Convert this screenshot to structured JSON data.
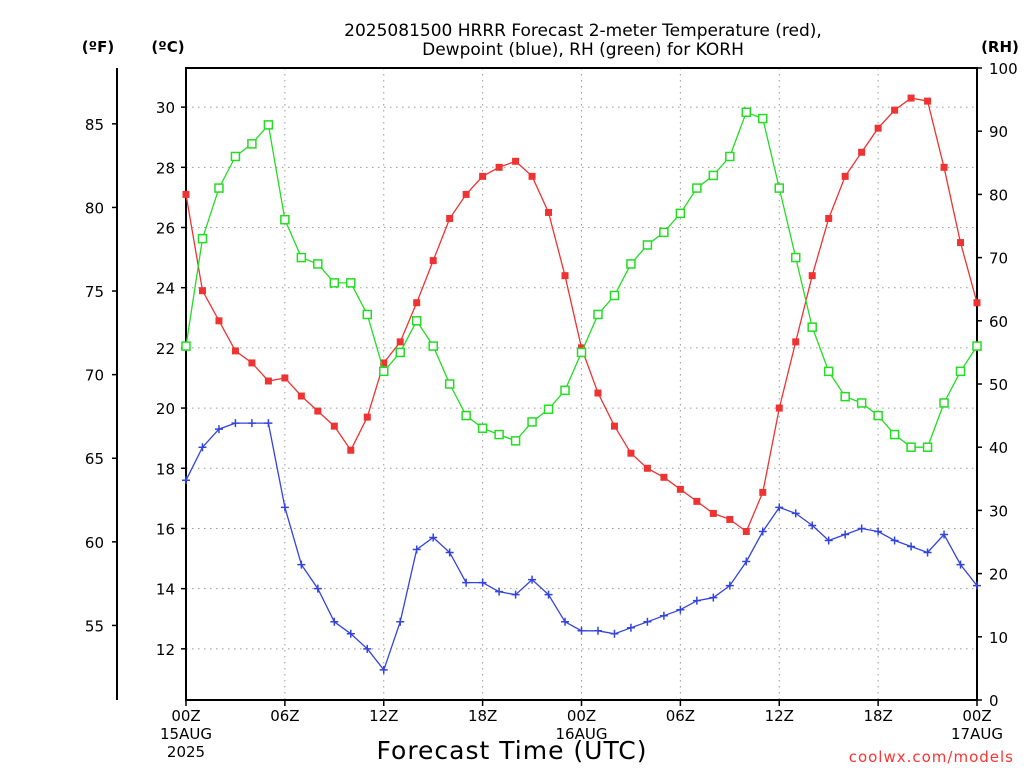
{
  "chart_data": {
    "type": "line",
    "title": "2025081500 HRRR Forecast 2-meter Temperature (red),",
    "subtitle": "Dewpoint (blue), RH (green) for KORH",
    "xlabel": "Forecast Time (UTC)",
    "credit": "coolwx.com/models",
    "units": {
      "fahrenheit": "(ºF)",
      "celsius": "(ºC)",
      "rh": "(RH)"
    },
    "x_range_hours": [
      0,
      48
    ],
    "x_ticks": [
      {
        "h": 0,
        "label": "00Z",
        "sub1": "15AUG",
        "sub2": "2025"
      },
      {
        "h": 6,
        "label": "06Z",
        "sub1": "",
        "sub2": ""
      },
      {
        "h": 12,
        "label": "12Z",
        "sub1": "",
        "sub2": ""
      },
      {
        "h": 18,
        "label": "18Z",
        "sub1": "",
        "sub2": ""
      },
      {
        "h": 24,
        "label": "00Z",
        "sub1": "16AUG",
        "sub2": ""
      },
      {
        "h": 30,
        "label": "06Z",
        "sub1": "",
        "sub2": ""
      },
      {
        "h": 36,
        "label": "12Z",
        "sub1": "",
        "sub2": ""
      },
      {
        "h": 42,
        "label": "18Z",
        "sub1": "",
        "sub2": ""
      },
      {
        "h": 48,
        "label": "00Z",
        "sub1": "17AUG",
        "sub2": ""
      }
    ],
    "celsius_axis": {
      "range": [
        10.3,
        31.3
      ],
      "ticks": [
        12,
        14,
        16,
        18,
        20,
        22,
        24,
        26,
        28,
        30
      ]
    },
    "fahrenheit_axis": {
      "ticks": [
        55,
        60,
        65,
        70,
        75,
        80,
        85
      ]
    },
    "rh_axis": {
      "range": [
        0,
        100
      ],
      "ticks": [
        0,
        10,
        20,
        30,
        40,
        50,
        60,
        70,
        80,
        90,
        100
      ]
    },
    "grid": true,
    "series": [
      {
        "name": "Temperature",
        "color": "#ee3333",
        "marker": "filled-square",
        "axis": "celsius",
        "x": [
          0,
          1,
          2,
          3,
          4,
          5,
          6,
          7,
          8,
          9,
          10,
          11,
          12,
          13,
          14,
          15,
          16,
          17,
          18,
          19,
          20,
          21,
          22,
          23,
          24,
          25,
          26,
          27,
          28,
          29,
          30,
          31,
          32,
          33,
          34,
          35,
          36,
          37,
          38,
          39,
          40,
          41,
          42,
          43,
          44,
          45,
          46,
          47,
          48
        ],
        "values": [
          27.1,
          23.9,
          22.9,
          21.9,
          21.5,
          20.9,
          21.0,
          20.4,
          19.9,
          19.4,
          18.6,
          19.7,
          21.5,
          22.2,
          23.5,
          24.9,
          26.3,
          27.1,
          27.7,
          28.0,
          28.2,
          27.7,
          26.5,
          24.4,
          22.0,
          20.5,
          19.4,
          18.5,
          18.0,
          17.7,
          17.3,
          16.9,
          16.5,
          16.3,
          15.9,
          17.2,
          20.0,
          22.2,
          24.4,
          26.3,
          27.7,
          28.5,
          29.3,
          29.9,
          30.3,
          30.2,
          28.0,
          25.5,
          23.5
        ]
      },
      {
        "name": "Dewpoint",
        "color": "#3344dd",
        "marker": "plus",
        "axis": "celsius",
        "x": [
          0,
          1,
          2,
          3,
          4,
          5,
          6,
          7,
          8,
          9,
          10,
          11,
          12,
          13,
          14,
          15,
          16,
          17,
          18,
          19,
          20,
          21,
          22,
          23,
          24,
          25,
          26,
          27,
          28,
          29,
          30,
          31,
          32,
          33,
          34,
          35,
          36,
          37,
          38,
          39,
          40,
          41,
          42,
          43,
          44,
          45,
          46,
          47,
          48
        ],
        "values": [
          17.6,
          18.7,
          19.3,
          19.5,
          19.5,
          19.5,
          16.7,
          14.8,
          14.0,
          12.9,
          12.5,
          12.0,
          11.3,
          12.9,
          15.3,
          15.7,
          15.2,
          14.2,
          14.2,
          13.9,
          13.8,
          14.3,
          13.8,
          12.9,
          12.6,
          12.6,
          12.5,
          12.7,
          12.9,
          13.1,
          13.3,
          13.6,
          13.7,
          14.1,
          14.9,
          15.9,
          16.7,
          16.5,
          16.1,
          15.6,
          15.8,
          16.0,
          15.9,
          15.6,
          15.4,
          15.2,
          15.8,
          14.8,
          14.1
        ]
      },
      {
        "name": "RH",
        "color": "#22dd22",
        "marker": "open-square",
        "axis": "rh",
        "x": [
          0,
          1,
          2,
          3,
          4,
          5,
          6,
          7,
          8,
          9,
          10,
          11,
          12,
          13,
          14,
          15,
          16,
          17,
          18,
          19,
          20,
          21,
          22,
          23,
          24,
          25,
          26,
          27,
          28,
          29,
          30,
          31,
          32,
          33,
          34,
          35,
          36,
          37,
          38,
          39,
          40,
          41,
          42,
          43,
          44,
          45,
          46,
          47,
          48
        ],
        "values": [
          56,
          73,
          81,
          86,
          88,
          91,
          76,
          70,
          69,
          66,
          66,
          61,
          52,
          55,
          60,
          56,
          50,
          45,
          43,
          42,
          41,
          44,
          46,
          49,
          55,
          61,
          64,
          69,
          72,
          74,
          77,
          81,
          83,
          86,
          93,
          92,
          81,
          70,
          59,
          52,
          48,
          47,
          45,
          42,
          40,
          40,
          47,
          52,
          56
        ]
      }
    ]
  }
}
